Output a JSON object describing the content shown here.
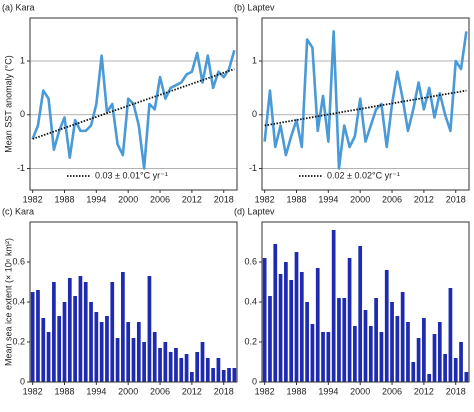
{
  "chart_data": [
    {
      "type": "line",
      "title": "(a) Kara",
      "ylabel": "Mean SST anomaly (°C)",
      "annotation": "0.03 ± 0.01°C yr⁻¹",
      "x": [
        1982,
        1983,
        1984,
        1985,
        1986,
        1987,
        1988,
        1989,
        1990,
        1991,
        1992,
        1993,
        1994,
        1995,
        1996,
        1997,
        1998,
        1999,
        2000,
        2001,
        2002,
        2003,
        2004,
        2005,
        2006,
        2007,
        2008,
        2009,
        2010,
        2011,
        2012,
        2013,
        2014,
        2015,
        2016,
        2017,
        2018,
        2019,
        2020
      ],
      "values": [
        -0.45,
        -0.2,
        0.45,
        0.3,
        -0.65,
        -0.3,
        -0.05,
        -0.8,
        -0.1,
        -0.3,
        -0.3,
        -0.2,
        0.2,
        1.1,
        0.05,
        0.2,
        -0.55,
        -0.75,
        0.3,
        0.2,
        -0.2,
        -1.0,
        0.2,
        0.1,
        0.7,
        0.3,
        0.5,
        0.55,
        0.6,
        0.75,
        0.8,
        1.15,
        0.6,
        1.1,
        0.5,
        0.8,
        0.7,
        0.85,
        1.2
      ],
      "trend": {
        "x": [
          1982,
          2020
        ],
        "values": [
          -0.45,
          0.85
        ]
      },
      "color": "#4a9ad8",
      "xlim": [
        1981.5,
        2020.5
      ],
      "xticks": [
        1982,
        1988,
        1994,
        2000,
        2006,
        2012,
        2018
      ],
      "ylim": [
        -1.4,
        1.8
      ],
      "yticks": [
        -1,
        0,
        1
      ],
      "grid": true
    },
    {
      "type": "line",
      "title": "(b) Laptev",
      "annotation": "0.02 ± 0.02°C yr⁻¹",
      "x": [
        1982,
        1983,
        1984,
        1985,
        1986,
        1987,
        1988,
        1989,
        1990,
        1991,
        1992,
        1993,
        1994,
        1995,
        1996,
        1997,
        1998,
        1999,
        2000,
        2001,
        2002,
        2003,
        2004,
        2005,
        2006,
        2007,
        2008,
        2009,
        2010,
        2011,
        2012,
        2013,
        2014,
        2015,
        2016,
        2017,
        2018,
        2019,
        2020
      ],
      "values": [
        -0.5,
        0.45,
        -0.6,
        -0.2,
        -0.75,
        -0.4,
        -0.1,
        -0.6,
        1.4,
        1.25,
        -0.3,
        0.35,
        -0.5,
        1.55,
        -1.0,
        -0.2,
        -0.6,
        -0.4,
        0.3,
        -0.5,
        -0.2,
        0.1,
        0.2,
        -0.6,
        0.2,
        0.8,
        0.3,
        -0.3,
        0.1,
        0.6,
        0.1,
        0.5,
        -0.05,
        0.4,
        0.0,
        -0.3,
        1.0,
        0.85,
        1.55
      ],
      "trend": {
        "x": [
          1982,
          2020
        ],
        "values": [
          -0.2,
          0.45
        ]
      },
      "color": "#4a9ad8",
      "xlim": [
        1981.5,
        2020.5
      ],
      "xticks": [
        1982,
        1988,
        1994,
        2000,
        2006,
        2012,
        2018
      ],
      "ylim": [
        -1.4,
        1.8
      ],
      "yticks": [
        -1,
        0,
        1
      ],
      "grid": true
    },
    {
      "type": "bar",
      "title": "(c) Kara",
      "ylabel": "Mean sea ice extent (× 10⁶ km²)",
      "x": [
        1982,
        1983,
        1984,
        1985,
        1986,
        1987,
        1988,
        1989,
        1990,
        1991,
        1992,
        1993,
        1994,
        1995,
        1996,
        1997,
        1998,
        1999,
        2000,
        2001,
        2002,
        2003,
        2004,
        2005,
        2006,
        2007,
        2008,
        2009,
        2010,
        2011,
        2012,
        2013,
        2014,
        2015,
        2016,
        2017,
        2018,
        2019,
        2020
      ],
      "values": [
        0.45,
        0.46,
        0.32,
        0.25,
        0.5,
        0.33,
        0.4,
        0.52,
        0.43,
        0.53,
        0.5,
        0.4,
        0.35,
        0.3,
        0.33,
        0.5,
        0.22,
        0.55,
        0.3,
        0.22,
        0.3,
        0.2,
        0.53,
        0.25,
        0.17,
        0.2,
        0.15,
        0.17,
        0.12,
        0.14,
        0.05,
        0.15,
        0.2,
        0.12,
        0.07,
        0.12,
        0.06,
        0.07,
        0.07
      ],
      "color": "#1e2bb0",
      "xlim": [
        1981.5,
        2020.5
      ],
      "xticks": [
        1982,
        1988,
        1994,
        2000,
        2006,
        2012,
        2018
      ],
      "ylim": [
        0,
        0.8
      ],
      "yticks": [
        0,
        0.2,
        0.4,
        0.6
      ],
      "grid": false
    },
    {
      "type": "bar",
      "title": "(d) Laptev",
      "x": [
        1982,
        1983,
        1984,
        1985,
        1986,
        1987,
        1988,
        1989,
        1990,
        1991,
        1992,
        1993,
        1994,
        1995,
        1996,
        1997,
        1998,
        1999,
        2000,
        2001,
        2002,
        2003,
        2004,
        2005,
        2006,
        2007,
        2008,
        2009,
        2010,
        2011,
        2012,
        2013,
        2014,
        2015,
        2016,
        2017,
        2018,
        2019,
        2020
      ],
      "values": [
        0.62,
        0.43,
        0.69,
        0.54,
        0.6,
        0.51,
        0.65,
        0.55,
        0.4,
        0.29,
        0.57,
        0.25,
        0.25,
        0.76,
        0.42,
        0.42,
        0.62,
        0.28,
        0.68,
        0.36,
        0.28,
        0.42,
        0.25,
        0.56,
        0.4,
        0.33,
        0.45,
        0.3,
        0.1,
        0.22,
        0.32,
        0.04,
        0.24,
        0.3,
        0.14,
        0.47,
        0.12,
        0.2,
        0.05
      ],
      "color": "#1e2bb0",
      "xlim": [
        1981.5,
        2020.5
      ],
      "xticks": [
        1982,
        1988,
        1994,
        2000,
        2006,
        2012,
        2018
      ],
      "ylim": [
        0,
        0.8
      ],
      "yticks": [
        0,
        0.2,
        0.4,
        0.6
      ],
      "grid": false
    }
  ]
}
